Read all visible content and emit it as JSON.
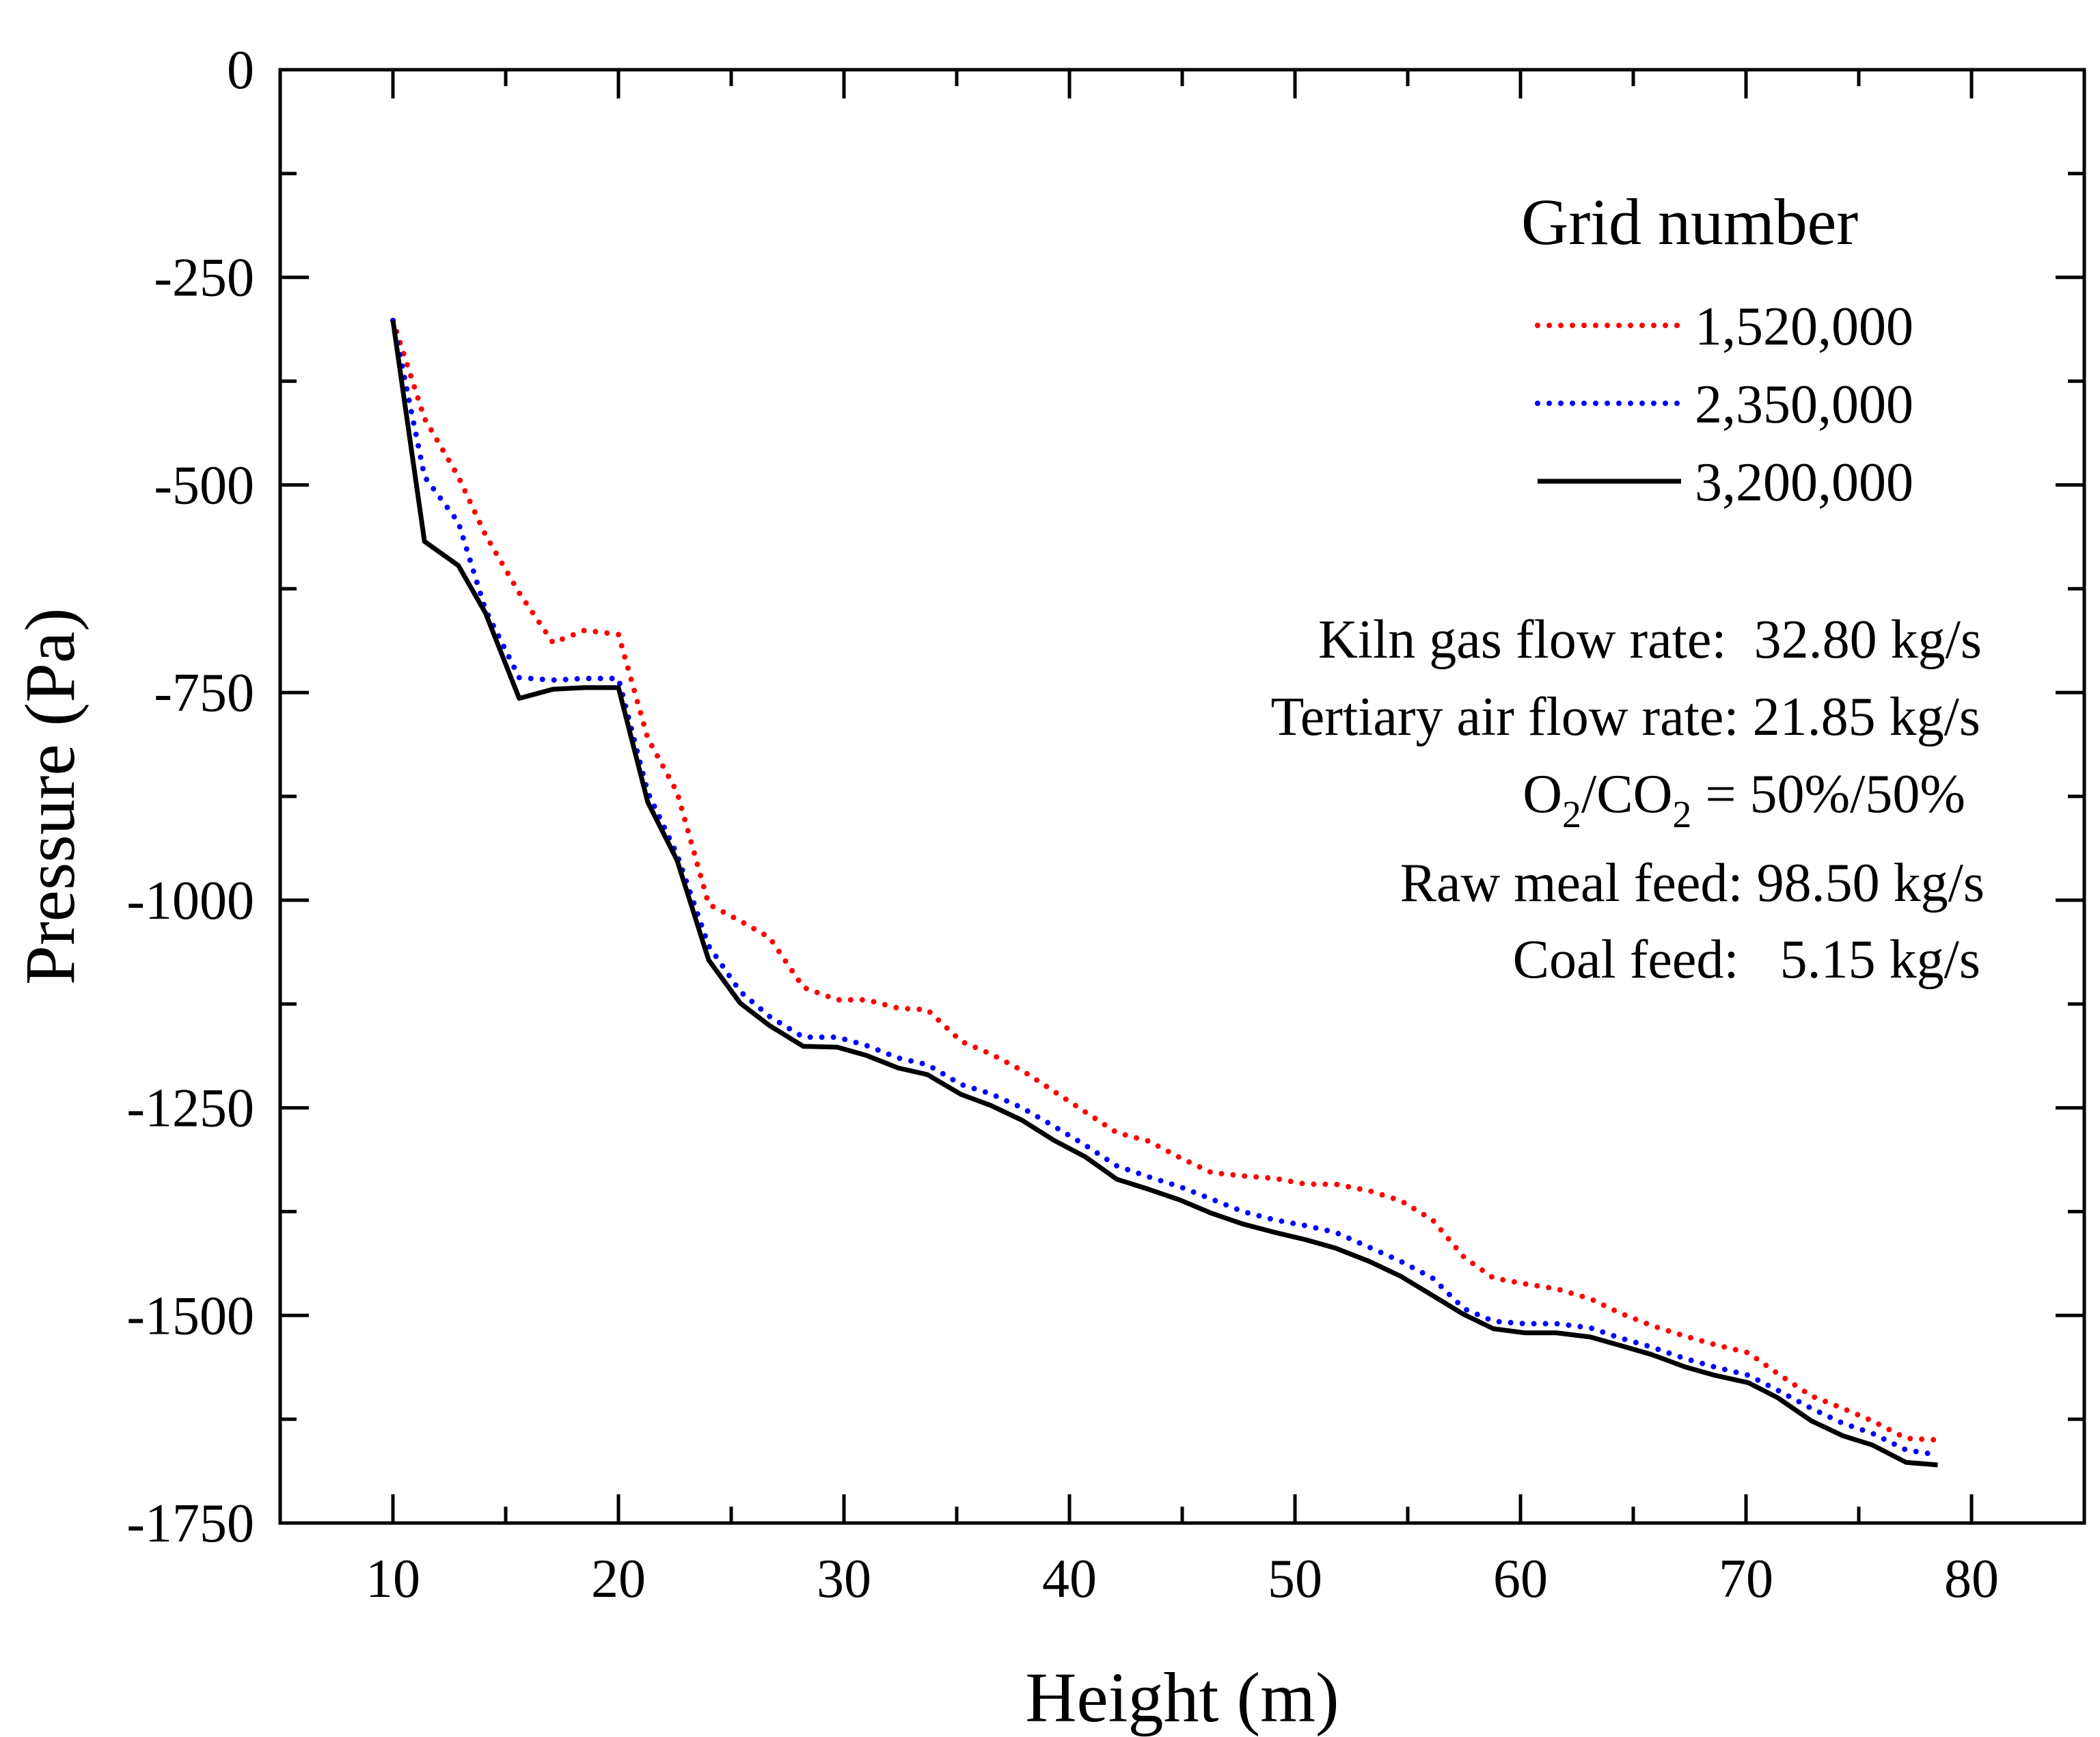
{
  "chart_data": {
    "type": "line",
    "xlabel": "Height (m)",
    "ylabel": "Pressure (Pa)",
    "xlim": [
      5,
      85
    ],
    "ylim": [
      -1750,
      0
    ],
    "xticks": [
      10,
      20,
      30,
      40,
      50,
      60,
      70,
      80
    ],
    "yticks": [
      0,
      -250,
      -500,
      -750,
      -1000,
      -1250,
      -1500,
      -1750
    ],
    "grid": false,
    "legend": {
      "title": "Grid number",
      "placement": "top-right"
    },
    "x": [
      10,
      11.4,
      12.9,
      14.1,
      15.6,
      17.1,
      18.5,
      20,
      21.3,
      22.6,
      24,
      25.4,
      26.7,
      28.2,
      29.7,
      31,
      32.4,
      33.7,
      35.2,
      36.5,
      37.9,
      39.3,
      40.7,
      42.1,
      43.5,
      44.9,
      46.3,
      47.7,
      49.1,
      50.5,
      51.8,
      53.3,
      54.7,
      56.1,
      57.5,
      58.8,
      60.2,
      61.6,
      63.1,
      64.4,
      65.8,
      67.3,
      68.6,
      70.1,
      71.4,
      72.9,
      74.3,
      75.6,
      77.1,
      78.5
    ],
    "series": [
      {
        "name": "1,520,000",
        "color": "#ff0000",
        "style": "dotted",
        "values": [
          -302,
          -420,
          -490,
          -560,
          -630,
          -690,
          -675,
          -680,
          -805,
          -870,
          -1005,
          -1025,
          -1045,
          -1105,
          -1120,
          -1120,
          -1130,
          -1132,
          -1170,
          -1185,
          -1205,
          -1230,
          -1255,
          -1280,
          -1290,
          -1310,
          -1328,
          -1332,
          -1335,
          -1342,
          -1342,
          -1350,
          -1362,
          -1385,
          -1430,
          -1455,
          -1462,
          -1468,
          -1480,
          -1497,
          -1512,
          -1525,
          -1535,
          -1545,
          -1570,
          -1597,
          -1612,
          -1627,
          -1648,
          -1650
        ]
      },
      {
        "name": "2,350,000",
        "color": "#0000ff",
        "style": "dotted",
        "values": [
          -302,
          -490,
          -545,
          -650,
          -732,
          -735,
          -733,
          -733,
          -870,
          -945,
          -1055,
          -1110,
          -1140,
          -1165,
          -1165,
          -1175,
          -1190,
          -1198,
          -1222,
          -1233,
          -1250,
          -1272,
          -1295,
          -1320,
          -1333,
          -1345,
          -1360,
          -1375,
          -1385,
          -1392,
          -1400,
          -1418,
          -1435,
          -1455,
          -1492,
          -1507,
          -1510,
          -1510,
          -1515,
          -1527,
          -1538,
          -1552,
          -1562,
          -1572,
          -1590,
          -1612,
          -1630,
          -1642,
          -1662,
          -1668
        ]
      },
      {
        "name": "3,200,000",
        "color": "#000000",
        "style": "solid",
        "values": [
          -302,
          -568,
          -597,
          -654,
          -757,
          -746,
          -744,
          -744,
          -882,
          -952,
          -1072,
          -1124,
          -1151,
          -1176,
          -1177,
          -1187,
          -1202,
          -1210,
          -1234,
          -1247,
          -1265,
          -1289,
          -1309,
          -1336,
          -1348,
          -1361,
          -1377,
          -1390,
          -1400,
          -1409,
          -1419,
          -1435,
          -1453,
          -1476,
          -1499,
          -1516,
          -1521,
          -1521,
          -1526,
          -1536,
          -1547,
          -1562,
          -1572,
          -1581,
          -1599,
          -1627,
          -1645,
          -1656,
          -1677,
          -1680
        ]
      }
    ],
    "annotations": {
      "kiln": "Kiln gas flow rate:  32.80 kg/s",
      "tertiary": "Tertiary air flow rate: 21.85 kg/s",
      "o2": {
        "a": "O",
        "b": "2",
        "c": "/CO",
        "d": "2",
        "e": " = 50%/50%"
      },
      "raw": "Raw meal feed: 98.50 kg/s",
      "coal": "Coal feed:   5.15 kg/s"
    }
  }
}
